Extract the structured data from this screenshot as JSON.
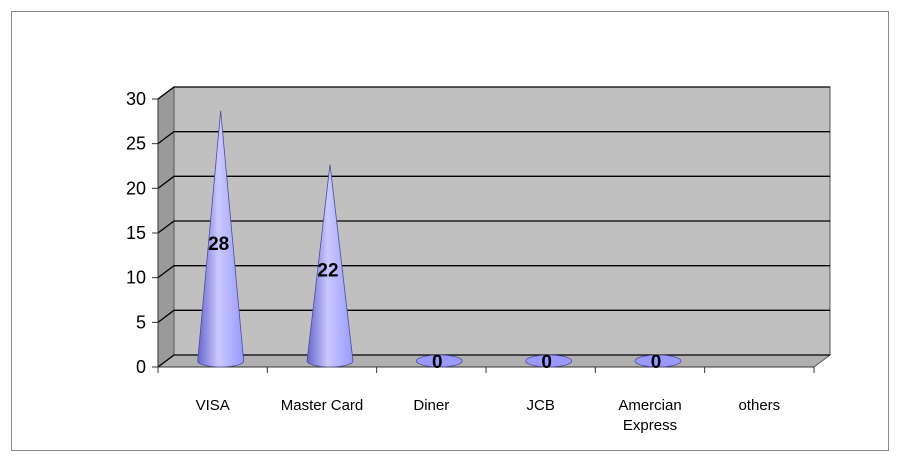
{
  "chart_data": {
    "type": "bar",
    "bar_shape": "cone",
    "categories": [
      "VISA",
      "Master Card",
      "Diner",
      "JCB",
      "Amercian Express",
      "others"
    ],
    "category_label_lines": [
      [
        "VISA"
      ],
      [
        "Master Card"
      ],
      [
        "Diner"
      ],
      [
        "JCB"
      ],
      [
        "Amercian",
        "Express"
      ],
      [
        "others"
      ]
    ],
    "values": [
      28,
      22,
      0,
      0,
      0,
      null
    ],
    "data_labels": [
      "28",
      "22",
      "0",
      "0",
      "0",
      ""
    ],
    "title": "",
    "xlabel": "",
    "ylabel": "",
    "ylim": [
      0,
      30
    ],
    "yticks": [
      0,
      5,
      10,
      15,
      20,
      25,
      30
    ],
    "grid": true,
    "legend": "none",
    "colors": {
      "wall": "#c0c0c0",
      "wall_side": "#9a9a9a",
      "floor": "#b0b0b0",
      "gridline": "#000000",
      "cone_light": "#c9c9ff",
      "cone_mid": "#9999ff",
      "cone_dark": "#6666cc"
    }
  }
}
